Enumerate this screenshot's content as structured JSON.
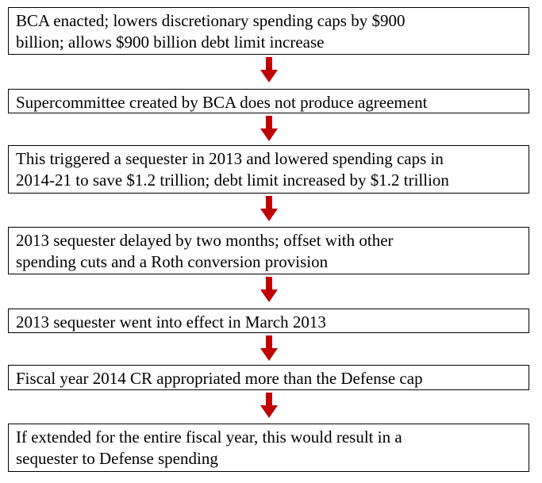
{
  "flowchart": {
    "steps": [
      {
        "lines": [
          "BCA enacted; lowers discretionary spending caps by $900",
          "billion; allows $900 billion debt limit increase"
        ]
      },
      {
        "lines": [
          "Supercommittee created by BCA does not produce agreement"
        ]
      },
      {
        "lines": [
          "This triggered a sequester in 2013 and lowered spending caps in",
          "2014-21 to save $1.2 trillion; debt limit increased by $1.2 trillion"
        ]
      },
      {
        "lines": [
          "2013 sequester delayed by two months; offset with other",
          "spending cuts and a Roth conversion provision"
        ]
      },
      {
        "lines": [
          "2013 sequester went into effect in March 2013"
        ]
      },
      {
        "lines": [
          "Fiscal year 2014 CR appropriated more than the Defense cap"
        ]
      },
      {
        "lines": [
          "If extended for the entire fiscal year, this would result in a",
          "sequester to Defense spending"
        ]
      }
    ],
    "arrow_color": "#c00000",
    "arrow_icon": "down-arrow-icon"
  }
}
